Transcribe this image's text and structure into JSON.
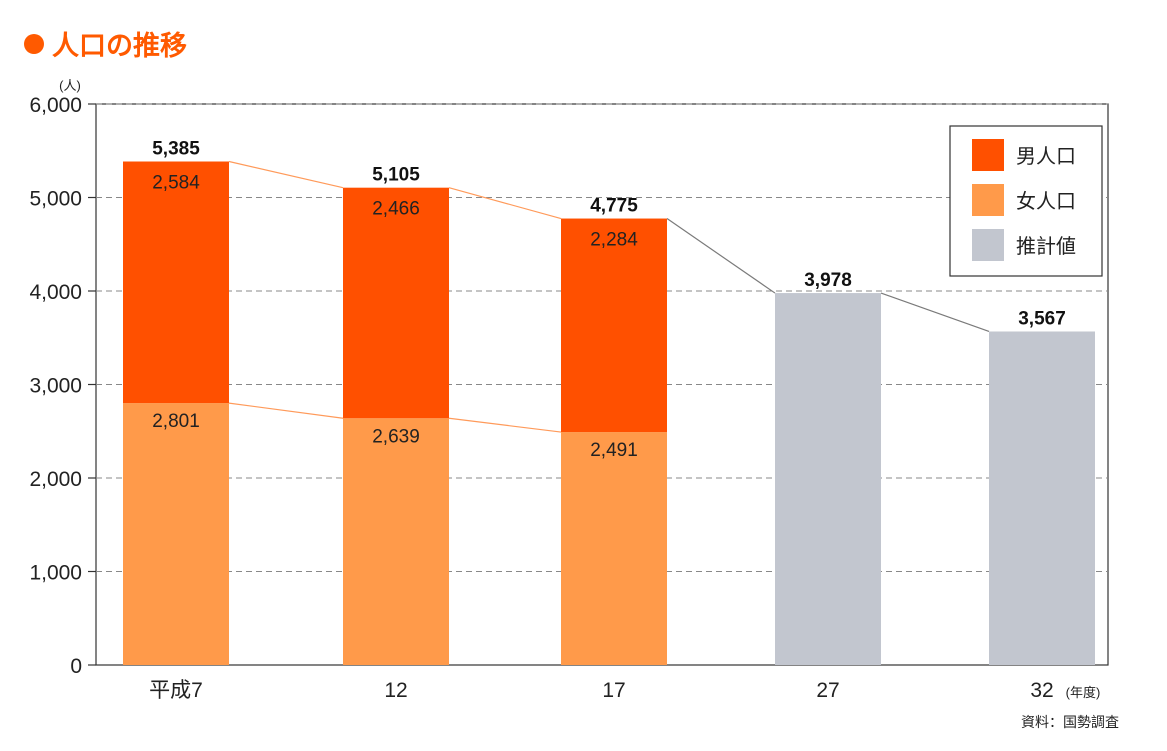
{
  "title": "人口の推移",
  "source": "資料：国勢調査",
  "colors": {
    "male": "#ff5000",
    "female": "#ff9a4a",
    "estimate": "#c2c6cf",
    "connector_orange": "#ff9a5a",
    "connector_gray": "#7a7a7a",
    "title": "#ff5a00"
  },
  "chart_data": {
    "type": "bar",
    "stacked": true,
    "y_unit": "(人)",
    "x_unit": "(年度)",
    "ylim": [
      0,
      6000
    ],
    "yticks": [
      "0",
      "1,000",
      "2,000",
      "3,000",
      "4,000",
      "5,000",
      "6,000"
    ],
    "ytick_values": [
      0,
      1000,
      2000,
      3000,
      4000,
      5000,
      6000
    ],
    "categories": [
      "平成7",
      "12",
      "17",
      "27",
      "32"
    ],
    "series": [
      {
        "name": "女人口",
        "values": [
          2801,
          2639,
          2491,
          null,
          null
        ],
        "labels": [
          "2,801",
          "2,639",
          "2,491",
          "",
          ""
        ]
      },
      {
        "name": "男人口",
        "values": [
          2584,
          2466,
          2284,
          null,
          null
        ],
        "labels": [
          "2,584",
          "2,466",
          "2,284",
          "",
          ""
        ]
      },
      {
        "name": "推計値",
        "values": [
          null,
          null,
          null,
          3978,
          3567
        ],
        "labels": [
          "",
          "",
          "",
          "",
          ""
        ]
      }
    ],
    "totals": [
      5385,
      5105,
      4775,
      3978,
      3567
    ],
    "total_labels": [
      "5,385",
      "5,105",
      "4,775",
      "3,978",
      "3,567"
    ],
    "legend": [
      "男人口",
      "女人口",
      "推計値"
    ],
    "legend_position": "top-right",
    "grid": "dashed-horizontal"
  }
}
